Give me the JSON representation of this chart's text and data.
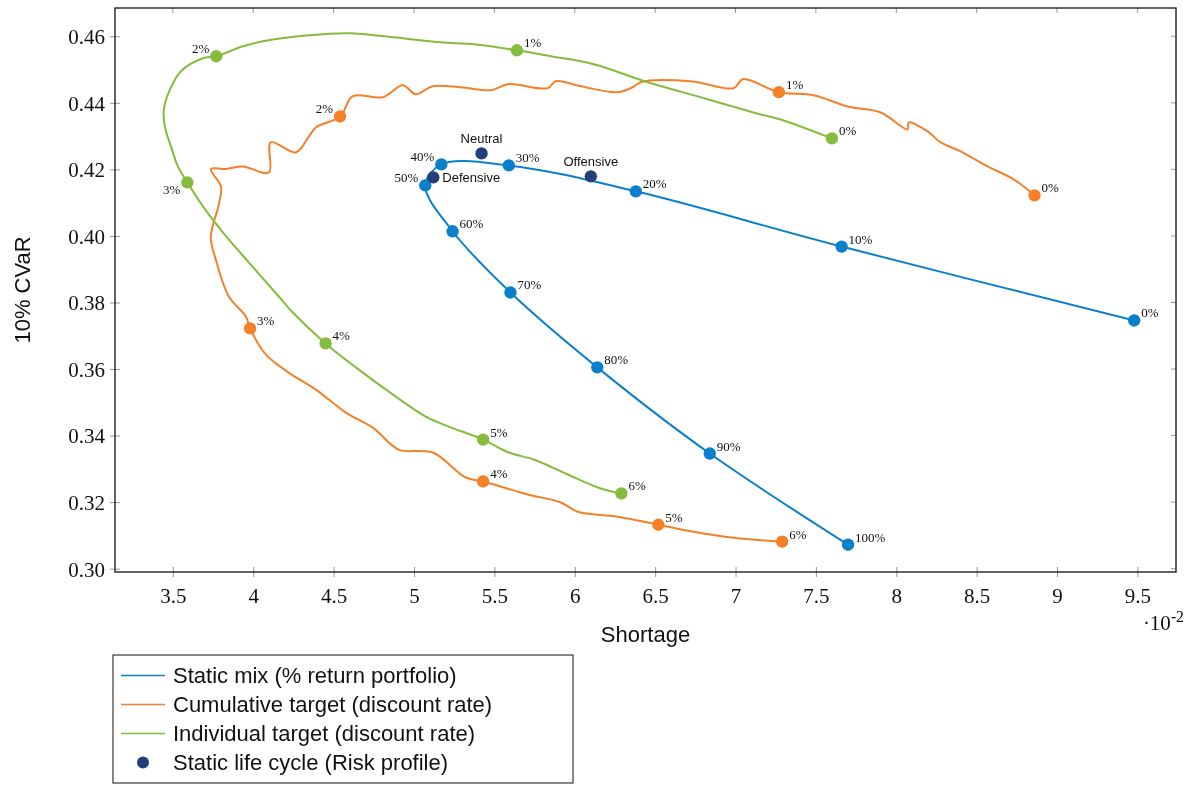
{
  "chart_data": {
    "type": "line",
    "xlabel": "Shortage",
    "ylabel": "10% CVaR",
    "xlim": [
      3.14,
      9.74
    ],
    "ylim": [
      0.299,
      0.4685
    ],
    "xticks": [
      3.5,
      4,
      4.5,
      5,
      5.5,
      6,
      6.5,
      7,
      7.5,
      8,
      8.5,
      9,
      9.5
    ],
    "yticks": [
      {
        "value": 0.3,
        "label": "0.30"
      },
      0.32,
      0.34,
      0.36,
      0.38,
      {
        "value": 0.4,
        "label": "0.40"
      },
      0.42,
      0.44,
      0.46
    ],
    "legend": "bottom left",
    "marker": "circle",
    "line_style": "solid",
    "annotations": [
      "·10$^{-2}$",
      {
        "text": "Neutral",
        "x": 5.42,
        "y": 0.4248
      },
      {
        "text": "Offensive",
        "x": 6.1,
        "y": 0.4179
      },
      {
        "text": "Defensive",
        "x": 5.12,
        "y": 0.4176
      },
      {
        "text": "0%",
        "x": 9.48,
        "y": 0.3746
      },
      {
        "text": "10%",
        "x": 7.66,
        "y": 0.3968
      },
      {
        "text": "20%",
        "x": 6.38,
        "y": 0.4134
      },
      {
        "text": "30%",
        "x": 5.59,
        "y": 0.4212
      },
      {
        "text": "40%",
        "x": 5.17,
        "y": 0.4215
      },
      {
        "text": "50%",
        "x": 5.07,
        "y": 0.4152
      },
      {
        "text": "60%",
        "x": 5.24,
        "y": 0.4014
      },
      {
        "text": "70%",
        "x": 5.6,
        "y": 0.383
      },
      {
        "text": "80%",
        "x": 6.14,
        "y": 0.3605
      },
      {
        "text": "90%",
        "x": 6.84,
        "y": 0.3346
      },
      {
        "text": "100%",
        "x": 7.7,
        "y": 0.3072
      },
      {
        "text": "0%",
        "x": 8.86,
        "y": 0.4122
      },
      {
        "text": "1%",
        "x": 7.27,
        "y": 0.4432
      },
      {
        "text": "2%",
        "x": 4.54,
        "y": 0.4359
      },
      {
        "text": "3%",
        "x": 3.98,
        "y": 0.3722
      },
      {
        "text": "4%",
        "x": 5.43,
        "y": 0.3262
      },
      {
        "text": "5%",
        "x": 6.52,
        "y": 0.3132
      },
      {
        "text": "6%",
        "x": 7.29,
        "y": 0.3081
      },
      {
        "text": "0%",
        "x": 7.6,
        "y": 0.4293
      },
      {
        "text": "1%",
        "x": 5.64,
        "y": 0.4558
      },
      {
        "text": "2%",
        "x": 3.77,
        "y": 0.454
      },
      {
        "text": "3%",
        "x": 3.59,
        "y": 0.4161
      },
      {
        "text": "4%",
        "x": 4.45,
        "y": 0.3677
      },
      {
        "text": "5%",
        "x": 5.43,
        "y": 0.3388
      },
      {
        "text": "6%",
        "x": 6.29,
        "y": 0.3226
      }
    ],
    "series": [
      {
        "name": "Static mix (% return portfolio)",
        "color": "#0a80cc",
        "x": [
          9.48,
          7.66,
          6.38,
          5.59,
          5.17,
          5.07,
          5.24,
          5.6,
          6.14,
          6.84,
          7.7
        ],
        "values": [
          0.3746,
          0.3968,
          0.4134,
          0.4212,
          0.4215,
          0.4152,
          0.4014,
          0.383,
          0.3605,
          0.3346,
          0.3072
        ]
      },
      {
        "name": "Cumulative target (discount rate)",
        "color": "#f4802a",
        "marker": "none",
        "x": [
          8.86,
          8.73,
          8.568,
          8.4,
          8.276,
          8.195,
          8.077,
          8.071,
          7.903,
          7.698,
          7.486,
          7.27,
          7.045,
          6.989,
          6.721,
          6.41,
          6.361,
          6.267,
          6.037,
          5.882,
          5.832,
          5.583,
          5.478,
          5.291,
          5.117,
          5.011,
          4.93,
          4.806,
          4.619,
          4.54,
          4.389,
          4.346,
          4.265,
          4.109,
          4.097,
          3.935,
          3.83,
          3.736,
          3.799,
          3.786,
          3.736,
          3.767,
          3.848,
          3.954,
          3.98,
          4.078,
          4.221,
          4.389,
          4.576,
          4.744,
          4.905,
          5.117,
          5.322,
          5.43,
          5.708,
          5.913,
          6.019,
          6.267,
          6.52,
          6.74,
          6.989,
          7.29
        ],
        "values": [
          0.4122,
          0.417,
          0.4209,
          0.4254,
          0.4281,
          0.4314,
          0.4341,
          0.432,
          0.4371,
          0.4389,
          0.4423,
          0.4432,
          0.4471,
          0.4444,
          0.4465,
          0.4462,
          0.4447,
          0.4432,
          0.445,
          0.4465,
          0.4444,
          0.4456,
          0.4438,
          0.4447,
          0.445,
          0.4426,
          0.4453,
          0.4417,
          0.442,
          0.4359,
          0.4326,
          0.4299,
          0.4251,
          0.4281,
          0.4191,
          0.4209,
          0.4201,
          0.4201,
          0.4149,
          0.4095,
          0.3998,
          0.3929,
          0.3818,
          0.3758,
          0.3722,
          0.3644,
          0.3589,
          0.3538,
          0.3469,
          0.3424,
          0.3358,
          0.3349,
          0.3274,
          0.3262,
          0.3223,
          0.3199,
          0.3171,
          0.3156,
          0.3132,
          0.3111,
          0.3093,
          0.3081
        ]
      },
      {
        "type": "scatter",
        "color": "#f4802a",
        "x": [
          8.86,
          7.27,
          4.54,
          3.98,
          5.43,
          6.52,
          7.29
        ],
        "values": [
          0.4122,
          0.4432,
          0.4359,
          0.3722,
          0.3262,
          0.3132,
          0.3081
        ]
      },
      {
        "name": "Individual target (discount rate)",
        "color": "#86bc3d",
        "marker": "none",
        "x": [
          7.6,
          7.28,
          7.157,
          6.827,
          6.454,
          6.118,
          5.851,
          5.64,
          5.372,
          5.167,
          4.868,
          4.595,
          4.346,
          4.06,
          3.935,
          3.77,
          3.687,
          3.55,
          3.475,
          3.444,
          3.45,
          3.488,
          3.531,
          3.59,
          3.687,
          3.811,
          3.973,
          4.159,
          4.246,
          4.45,
          4.638,
          4.887,
          5.073,
          5.216,
          5.43,
          5.59,
          5.745,
          5.956,
          6.162,
          6.29
        ],
        "values": [
          0.4293,
          0.435,
          0.4365,
          0.4411,
          0.4462,
          0.4516,
          0.454,
          0.4558,
          0.4576,
          0.4582,
          0.4597,
          0.4609,
          0.4603,
          0.4585,
          0.457,
          0.454,
          0.4534,
          0.4495,
          0.4432,
          0.438,
          0.4329,
          0.4269,
          0.4209,
          0.4161,
          0.4089,
          0.4011,
          0.392,
          0.3818,
          0.377,
          0.3677,
          0.3605,
          0.3517,
          0.3457,
          0.3427,
          0.3388,
          0.3349,
          0.3328,
          0.3283,
          0.3241,
          0.3226
        ]
      },
      {
        "type": "scatter",
        "color": "#86bc3d",
        "x": [
          7.6,
          5.64,
          3.77,
          3.59,
          4.45,
          5.43,
          6.29
        ],
        "values": [
          0.4293,
          0.4558,
          0.454,
          0.4161,
          0.3677,
          0.3388,
          0.3226
        ]
      },
      {
        "name": "Static life cycle (Risk profile)",
        "type": "scatter",
        "color": "#233e78",
        "x": [
          5.42,
          6.1,
          5.12
        ],
        "values": [
          0.4248,
          0.4179,
          0.4176
        ]
      }
    ]
  }
}
